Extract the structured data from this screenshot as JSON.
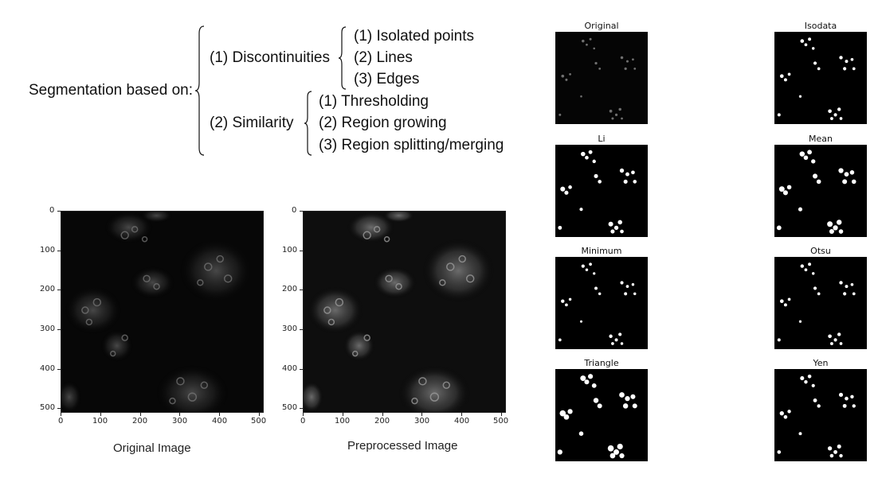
{
  "taxonomy": {
    "root": "Segmentation based on:",
    "groups": [
      {
        "label": "(1) Discontinuities",
        "items": [
          "(1) Isolated points",
          "(2) Lines",
          "(3) Edges"
        ]
      },
      {
        "label": "(2) Similarity",
        "items": [
          "(1) Thresholding",
          "(2) Region growing",
          "(3) Region splitting/merging"
        ]
      }
    ]
  },
  "plots": [
    {
      "caption": "Original Image",
      "xticks": [
        "0",
        "100",
        "200",
        "300",
        "400",
        "500"
      ],
      "yticks": [
        "0",
        "100",
        "200",
        "300",
        "400",
        "500"
      ]
    },
    {
      "caption": "Preprocessed Image",
      "xticks": [
        "0",
        "100",
        "200",
        "300",
        "400",
        "500"
      ],
      "yticks": [
        "0",
        "100",
        "200",
        "300",
        "400",
        "500"
      ]
    }
  ],
  "thumbnails": [
    {
      "title": "Original"
    },
    {
      "title": "Isodata"
    },
    {
      "title": "Li"
    },
    {
      "title": "Mean"
    },
    {
      "title": "Minimum"
    },
    {
      "title": "Otsu"
    },
    {
      "title": "Triangle"
    },
    {
      "title": "Yen"
    }
  ]
}
